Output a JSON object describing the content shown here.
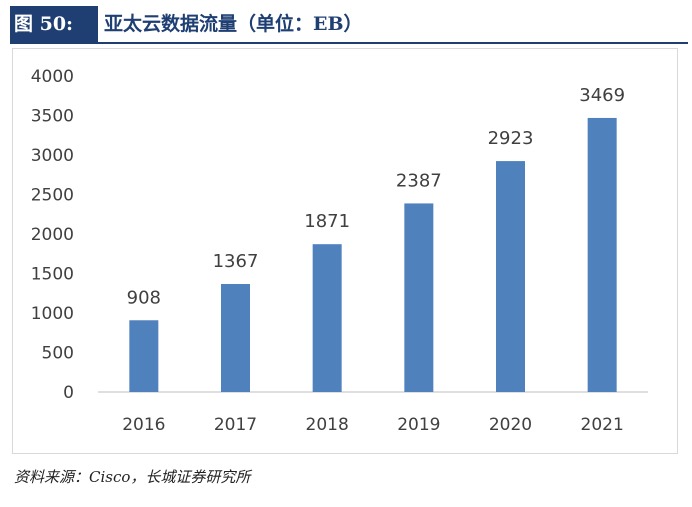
{
  "header": {
    "figure_label": "图 50:",
    "title": "亚太云数据流量（单位：EB）"
  },
  "source_note": "资料来源：Cisco，长城证券研究所",
  "colors": {
    "bar": "#4f81bd",
    "header_bg": "#1f3f73",
    "axis": "#bfbfbf"
  },
  "chart_data": {
    "type": "bar",
    "title": "亚太云数据流量（单位：EB）",
    "xlabel": "",
    "ylabel": "",
    "categories": [
      "2016",
      "2017",
      "2018",
      "2019",
      "2020",
      "2021"
    ],
    "values": [
      908,
      1367,
      1871,
      2387,
      2923,
      3469
    ],
    "data_labels": [
      "908",
      "1367",
      "1871",
      "2387",
      "2923",
      "3469"
    ],
    "ylim": [
      0,
      4000
    ],
    "yticks": [
      0,
      500,
      1000,
      1500,
      2000,
      2500,
      3000,
      3500,
      4000
    ],
    "grid": false,
    "legend": "none"
  }
}
